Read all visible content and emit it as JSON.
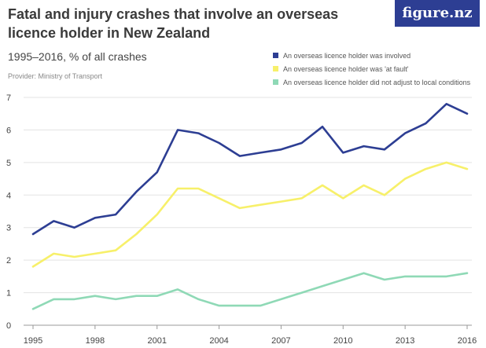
{
  "brand": "figure.nz",
  "chart_data": {
    "type": "line",
    "title": "Fatal and injury crashes that involve an overseas licence holder in New Zealand",
    "subtitle": "1995–2016, % of all crashes",
    "provider": "Provider: Ministry of Transport",
    "x": [
      1995,
      1996,
      1997,
      1998,
      1999,
      2000,
      2001,
      2002,
      2003,
      2004,
      2005,
      2006,
      2007,
      2008,
      2009,
      2010,
      2011,
      2012,
      2013,
      2014,
      2015,
      2016
    ],
    "x_ticks": [
      "1995",
      "1998",
      "2001",
      "2004",
      "2007",
      "2010",
      "2013",
      "2016"
    ],
    "y_ticks": [
      "0",
      "1",
      "2",
      "3",
      "4",
      "5",
      "6",
      "7"
    ],
    "ylim": [
      0,
      7
    ],
    "legend_position": "top-right",
    "grid": true,
    "series": [
      {
        "name": "An overseas licence holder was involved",
        "color": "#2d3e93",
        "values": [
          2.8,
          3.2,
          3.0,
          3.3,
          3.4,
          4.1,
          4.7,
          6.0,
          5.9,
          5.6,
          5.2,
          5.3,
          5.4,
          5.6,
          6.1,
          5.3,
          5.5,
          5.4,
          5.9,
          6.2,
          6.8,
          6.5
        ]
      },
      {
        "name": "An overseas licence holder was 'at fault'",
        "color": "#f7f06a",
        "values": [
          1.8,
          2.2,
          2.1,
          2.2,
          2.3,
          2.8,
          3.4,
          4.2,
          4.2,
          3.9,
          3.6,
          3.7,
          3.8,
          3.9,
          4.3,
          3.9,
          4.3,
          4.0,
          4.5,
          4.8,
          5.0,
          4.8
        ]
      },
      {
        "name": "An overseas licence holder did not adjust to local conditions",
        "color": "#8fd9b6",
        "values": [
          0.5,
          0.8,
          0.8,
          0.9,
          0.8,
          0.9,
          0.9,
          1.1,
          0.8,
          0.6,
          0.6,
          0.6,
          0.8,
          1.0,
          1.2,
          1.4,
          1.6,
          1.4,
          1.5,
          1.5,
          1.5,
          1.6
        ]
      }
    ]
  }
}
